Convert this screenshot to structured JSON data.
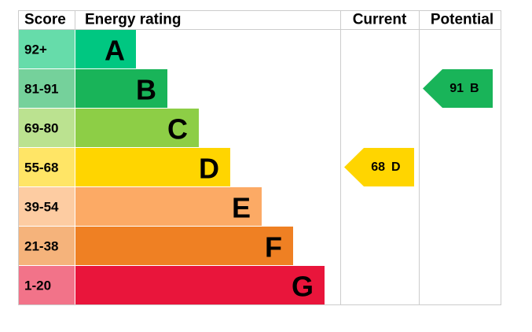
{
  "header": {
    "score": "Score",
    "rating": "Energy rating",
    "current": "Current",
    "potential": "Potential"
  },
  "bands": [
    {
      "score": "92+",
      "letter": "A",
      "color": "#00c781",
      "score_color": "#66dcaa"
    },
    {
      "score": "81-91",
      "letter": "B",
      "color": "#19b459",
      "score_color": "#75d19b"
    },
    {
      "score": "69-80",
      "letter": "C",
      "color": "#8dce46",
      "score_color": "#bbe290"
    },
    {
      "score": "55-68",
      "letter": "D",
      "color": "#ffd500",
      "score_color": "#ffe566"
    },
    {
      "score": "39-54",
      "letter": "E",
      "color": "#fcaa65",
      "score_color": "#fdcca2"
    },
    {
      "score": "21-38",
      "letter": "F",
      "color": "#ef8023",
      "score_color": "#f5b37b"
    },
    {
      "score": "1-20",
      "letter": "G",
      "color": "#e9153b",
      "score_color": "#f27389"
    }
  ],
  "current": {
    "value": 68,
    "letter": "D"
  },
  "potential": {
    "value": 91,
    "letter": "B"
  }
}
